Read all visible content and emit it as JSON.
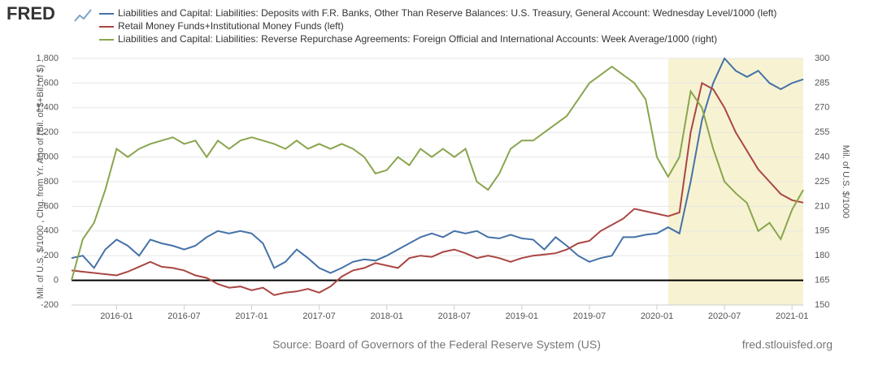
{
  "logo": "FRED",
  "source": "Source: Board of Governors of the Federal Reserve System (US)",
  "credit": "fred.stlouisfed.org",
  "chart_data": {
    "type": "line",
    "ylabel": "Mil. of U.S. $/1000 , Chg. from Yr. Ago of (Bil. of $+Bil. of $)",
    "y2label": "Mil. of U.S. $/1000",
    "x": [
      "2015-09",
      "2015-10",
      "2015-11",
      "2015-12",
      "2016-01",
      "2016-02",
      "2016-03",
      "2016-04",
      "2016-05",
      "2016-06",
      "2016-07",
      "2016-08",
      "2016-09",
      "2016-10",
      "2016-11",
      "2016-12",
      "2017-01",
      "2017-02",
      "2017-03",
      "2017-04",
      "2017-05",
      "2017-06",
      "2017-07",
      "2017-08",
      "2017-09",
      "2017-10",
      "2017-11",
      "2017-12",
      "2018-01",
      "2018-02",
      "2018-03",
      "2018-04",
      "2018-05",
      "2018-06",
      "2018-07",
      "2018-08",
      "2018-09",
      "2018-10",
      "2018-11",
      "2018-12",
      "2019-01",
      "2019-02",
      "2019-03",
      "2019-04",
      "2019-05",
      "2019-06",
      "2019-07",
      "2019-08",
      "2019-09",
      "2019-10",
      "2019-11",
      "2019-12",
      "2020-01",
      "2020-02",
      "2020-03",
      "2020-04",
      "2020-05",
      "2020-06",
      "2020-07",
      "2020-08",
      "2020-09",
      "2020-10",
      "2020-11",
      "2020-12",
      "2021-01",
      "2021-02"
    ],
    "xlim": [
      "2015-09",
      "2021-02"
    ],
    "xticks": [
      "2016-01",
      "2016-07",
      "2017-01",
      "2017-07",
      "2018-01",
      "2018-07",
      "2019-01",
      "2019-07",
      "2020-01",
      "2020-07",
      "2021-01"
    ],
    "ylim": [
      -200,
      1800
    ],
    "yticks": [
      -200,
      0,
      200,
      400,
      600,
      800,
      {
        "value": 1000,
        "label": "1,000"
      },
      {
        "value": 1200,
        "label": "1,200"
      },
      {
        "value": 1400,
        "label": "1,400"
      },
      {
        "value": 1600,
        "label": "1,600"
      },
      {
        "value": 1800,
        "label": "1,800"
      }
    ],
    "y2lim": [
      150,
      300
    ],
    "y2ticks": [
      150,
      165,
      180,
      195,
      210,
      225,
      240,
      255,
      270,
      285,
      300
    ],
    "grid": true,
    "zero_line": true,
    "recession": {
      "start": "2020-02",
      "end": "2021-02",
      "color": "#f7f3d2"
    },
    "series": [
      {
        "name": "Liabilities and Capital: Liabilities: Deposits with F.R. Banks, Other Than Reserve Balances: U.S. Treasury, General Account: Wednesday Level/1000 (left)",
        "color": "#4572a7",
        "axis": "y",
        "values": [
          180,
          200,
          100,
          250,
          330,
          280,
          200,
          330,
          300,
          280,
          250,
          280,
          350,
          400,
          380,
          400,
          380,
          300,
          100,
          150,
          250,
          180,
          100,
          60,
          100,
          150,
          170,
          160,
          200,
          250,
          300,
          350,
          380,
          350,
          400,
          380,
          400,
          350,
          340,
          370,
          340,
          330,
          250,
          350,
          280,
          200,
          150,
          180,
          200,
          350,
          350,
          370,
          380,
          430,
          380,
          800,
          1300,
          1600,
          1800,
          1700,
          1650,
          1700,
          1600,
          1550,
          1600,
          1630
        ]
      },
      {
        "name": "Retail Money Funds+Institutional Money Funds (left)",
        "color": "#aa4643",
        "axis": "y",
        "values": [
          80,
          70,
          60,
          50,
          40,
          70,
          110,
          150,
          110,
          100,
          80,
          40,
          20,
          -30,
          -60,
          -50,
          -80,
          -60,
          -120,
          -100,
          -90,
          -70,
          -100,
          -50,
          30,
          80,
          100,
          140,
          120,
          100,
          180,
          200,
          190,
          230,
          250,
          220,
          180,
          200,
          180,
          150,
          180,
          200,
          210,
          220,
          250,
          300,
          320,
          400,
          450,
          500,
          580,
          560,
          540,
          520,
          550,
          1200,
          1600,
          1550,
          1400,
          1200,
          1050,
          900,
          800,
          700,
          650,
          630
        ]
      },
      {
        "name": "Liabilities and Capital: Liabilities: Reverse Repurchase Agreements: Foreign Official and International Accounts: Week Average/1000 (right)",
        "color": "#89a54e",
        "axis": "y2",
        "values": [
          165,
          190,
          200,
          220,
          245,
          240,
          245,
          248,
          250,
          252,
          248,
          250,
          240,
          250,
          245,
          250,
          252,
          250,
          248,
          245,
          250,
          245,
          248,
          245,
          248,
          245,
          240,
          230,
          232,
          240,
          235,
          245,
          240,
          245,
          240,
          245,
          225,
          220,
          230,
          245,
          250,
          250,
          255,
          260,
          265,
          275,
          285,
          290,
          295,
          290,
          285,
          275,
          240,
          228,
          240,
          280,
          270,
          245,
          225,
          218,
          212,
          195,
          200,
          190,
          208,
          220
        ]
      }
    ]
  }
}
